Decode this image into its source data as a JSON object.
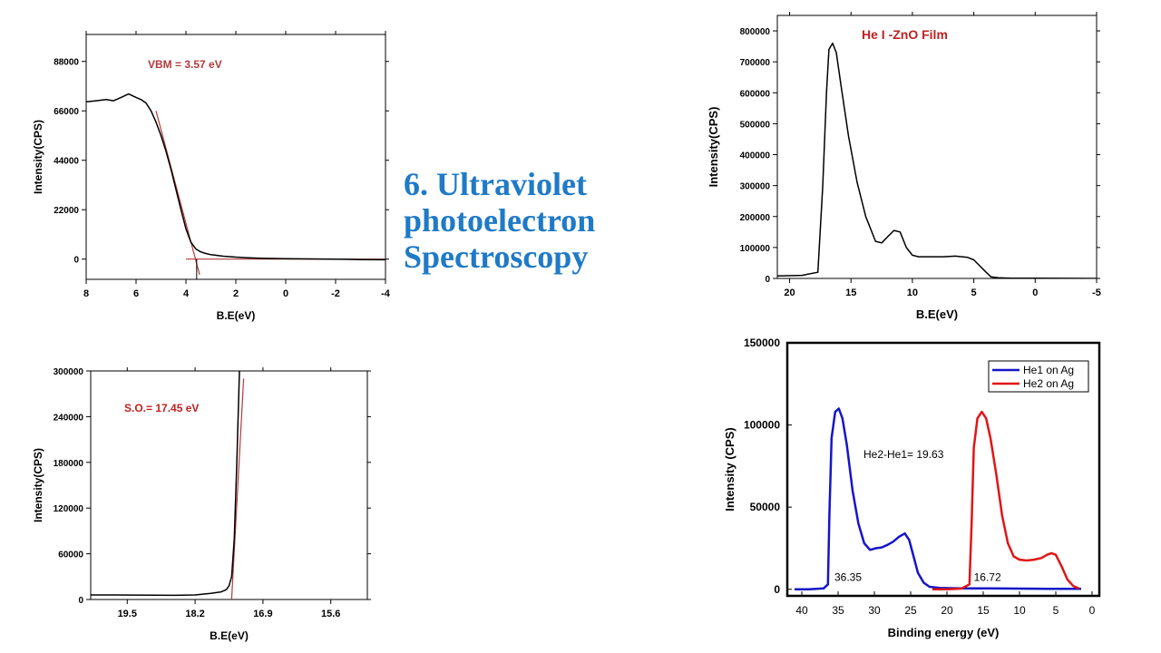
{
  "slide": {
    "title_lines": [
      "6. Ultraviolet",
      "photoelectron",
      "Spectroscopy"
    ]
  },
  "colors": {
    "title": "#1f7ac7",
    "fit_line": "#b33a3a",
    "annotation": "#c02020",
    "blue_series": "#1515c8",
    "red_series": "#e01515"
  },
  "chart_data": [
    {
      "id": "vbm",
      "type": "line",
      "title": "",
      "annotation": "VBM = 3.57 eV",
      "xlabel": "B.E(eV)",
      "ylabel": "Intensity(CPS)",
      "xlim": [
        8,
        -4
      ],
      "ylim": [
        -9000,
        100000
      ],
      "xticks": [
        8,
        6,
        4,
        2,
        0,
        -2,
        -4
      ],
      "xtick_labels": [
        "8",
        "6",
        "4",
        "2",
        "0",
        "-2",
        "-4"
      ],
      "yticks": [
        0,
        22000,
        44000,
        66000,
        88000
      ],
      "ytick_labels": [
        "0",
        "22000",
        "44000",
        "66000",
        "88000"
      ],
      "grid": false,
      "series": [
        {
          "x": [
            8.0,
            7.6,
            7.2,
            6.9,
            6.6,
            6.3,
            6.0,
            5.8,
            5.6,
            5.4,
            5.2,
            5.0,
            4.8,
            4.6,
            4.4,
            4.2,
            4.0,
            3.8,
            3.6,
            3.4,
            3.2,
            3.0,
            2.5,
            2.0,
            1.5,
            1.0,
            0.0,
            -1.0,
            -2.0,
            -3.0,
            -4.0
          ],
          "y": [
            70000,
            70500,
            71000,
            70500,
            72000,
            73500,
            72000,
            71000,
            69500,
            66000,
            61000,
            55000,
            48000,
            40000,
            31000,
            22000,
            13500,
            7500,
            4500,
            3200,
            2500,
            2000,
            1300,
            900,
            600,
            400,
            200,
            100,
            0,
            -200,
            -300
          ]
        }
      ],
      "fits": [
        {
          "x": [
            5.2,
            3.45
          ],
          "y": [
            66000,
            -7000
          ]
        },
        {
          "x": [
            4.0,
            -4.0
          ],
          "y": [
            0,
            0
          ]
        }
      ],
      "markers": [
        {
          "x": 3.57,
          "y_from": 0,
          "y_to": -9000
        }
      ]
    },
    {
      "id": "so",
      "type": "line",
      "title": "",
      "annotation": "S.O.= 17.45 eV",
      "xlabel": "B.E(eV)",
      "ylabel": "Intensity(CPS)",
      "xlim": [
        20.2,
        14.9
      ],
      "ylim": [
        0,
        300000
      ],
      "xticks": [
        19.5,
        18.2,
        16.9,
        15.6
      ],
      "xtick_labels": [
        "19.5",
        "18.2",
        "16.9",
        "15.6"
      ],
      "yticks": [
        0,
        60000,
        120000,
        180000,
        240000,
        300000
      ],
      "ytick_labels": [
        "0",
        "60000",
        "120000",
        "180000",
        "240000",
        "300000"
      ],
      "grid": false,
      "series": [
        {
          "x": [
            20.2,
            19.8,
            19.4,
            19.0,
            18.6,
            18.2,
            17.9,
            17.7,
            17.6,
            17.55,
            17.5,
            17.45,
            17.4,
            17.35
          ],
          "y": [
            6000,
            6000,
            5800,
            5600,
            5500,
            6000,
            8000,
            10000,
            13000,
            18000,
            30000,
            80000,
            180000,
            300000
          ]
        }
      ],
      "fits": [
        {
          "x": [
            17.5,
            17.27
          ],
          "y": [
            0,
            290000
          ]
        }
      ]
    },
    {
      "id": "zno",
      "type": "line",
      "title": "",
      "annotation": "He I -ZnO Film",
      "xlabel": "B.E(eV)",
      "ylabel": "Intensity(CPS)",
      "xlim": [
        21,
        -5
      ],
      "ylim": [
        0,
        850000
      ],
      "xticks": [
        20,
        15,
        10,
        5,
        0,
        -5
      ],
      "xtick_labels": [
        "20",
        "15",
        "10",
        "5",
        "0",
        "-5"
      ],
      "yticks": [
        0,
        100000,
        200000,
        300000,
        400000,
        500000,
        600000,
        700000,
        800000
      ],
      "ytick_labels": [
        "0",
        "100000",
        "200000",
        "300000",
        "400000",
        "500000",
        "600000",
        "700000",
        "800000"
      ],
      "grid": false,
      "series": [
        {
          "x": [
            21,
            19,
            17.7,
            17.3,
            17.0,
            16.8,
            16.5,
            16.2,
            15.8,
            15.2,
            14.5,
            13.8,
            13.0,
            12.5,
            12.0,
            11.5,
            11.0,
            10.5,
            10.0,
            9.5,
            8.5,
            7.5,
            6.5,
            5.5,
            5.0,
            4.5,
            4.0,
            3.6,
            3.0,
            2.0,
            0,
            -5
          ],
          "y": [
            8000,
            10000,
            20000,
            300000,
            600000,
            740000,
            760000,
            730000,
            620000,
            460000,
            310000,
            200000,
            120000,
            115000,
            135000,
            155000,
            150000,
            100000,
            75000,
            70000,
            70000,
            70000,
            72000,
            68000,
            60000,
            40000,
            20000,
            5000,
            2000,
            1000,
            500,
            0
          ]
        }
      ]
    },
    {
      "id": "ag",
      "type": "line",
      "title": "",
      "xlabel": "Binding energy (eV)",
      "ylabel": "Intensity (CPS)",
      "xlim": [
        42,
        -1
      ],
      "ylim": [
        -4000,
        150000
      ],
      "xticks": [
        40,
        35,
        30,
        25,
        20,
        15,
        10,
        5,
        0
      ],
      "xtick_labels": [
        "40",
        "35",
        "30",
        "25",
        "20",
        "15",
        "10",
        "5",
        "0"
      ],
      "yticks": [
        0,
        50000,
        100000,
        150000
      ],
      "ytick_labels": [
        "0",
        "50000",
        "100000",
        "150000"
      ],
      "grid": false,
      "legend": "top-right",
      "annotations": [
        {
          "text": "He2-He1= 19.63",
          "x": 31.5,
          "y": 80000
        },
        {
          "text": "36.35",
          "x": 35.5,
          "y": 5000
        },
        {
          "text": "16.72",
          "x": 16.3,
          "y": 5000
        }
      ],
      "series": [
        {
          "name": "He1 on Ag",
          "color": "#1515c8",
          "x": [
            41,
            39,
            37,
            36.4,
            36.2,
            35.9,
            35.4,
            34.9,
            34.4,
            33.8,
            33.0,
            32.2,
            31.4,
            30.6,
            29.8,
            29.0,
            28.2,
            27.4,
            26.6,
            25.8,
            25.2,
            24.6,
            24.0,
            23.2,
            22.4,
            21.0,
            18,
            14,
            10,
            6,
            3,
            1.5
          ],
          "y": [
            0,
            0,
            500,
            3000,
            45000,
            92000,
            108000,
            110000,
            104000,
            88000,
            60000,
            40000,
            28000,
            24000,
            25000,
            25500,
            27000,
            29000,
            32000,
            34000,
            30000,
            20000,
            10000,
            4000,
            1500,
            800,
            600,
            500,
            400,
            300,
            300,
            300
          ]
        },
        {
          "name": "He2 on Ag",
          "color": "#e01515",
          "x": [
            22,
            20,
            18,
            16.9,
            16.6,
            16.3,
            15.8,
            15.2,
            14.6,
            14.0,
            13.2,
            12.4,
            11.6,
            10.8,
            10.0,
            9.0,
            8.0,
            7.0,
            6.2,
            5.6,
            5.0,
            4.2,
            3.4,
            2.6,
            1.8
          ],
          "y": [
            0,
            0,
            400,
            3000,
            40000,
            86000,
            104000,
            108000,
            104000,
            92000,
            70000,
            45000,
            28000,
            20000,
            18000,
            17500,
            18000,
            19000,
            21000,
            22000,
            21000,
            14000,
            6000,
            2000,
            500
          ]
        }
      ]
    }
  ]
}
